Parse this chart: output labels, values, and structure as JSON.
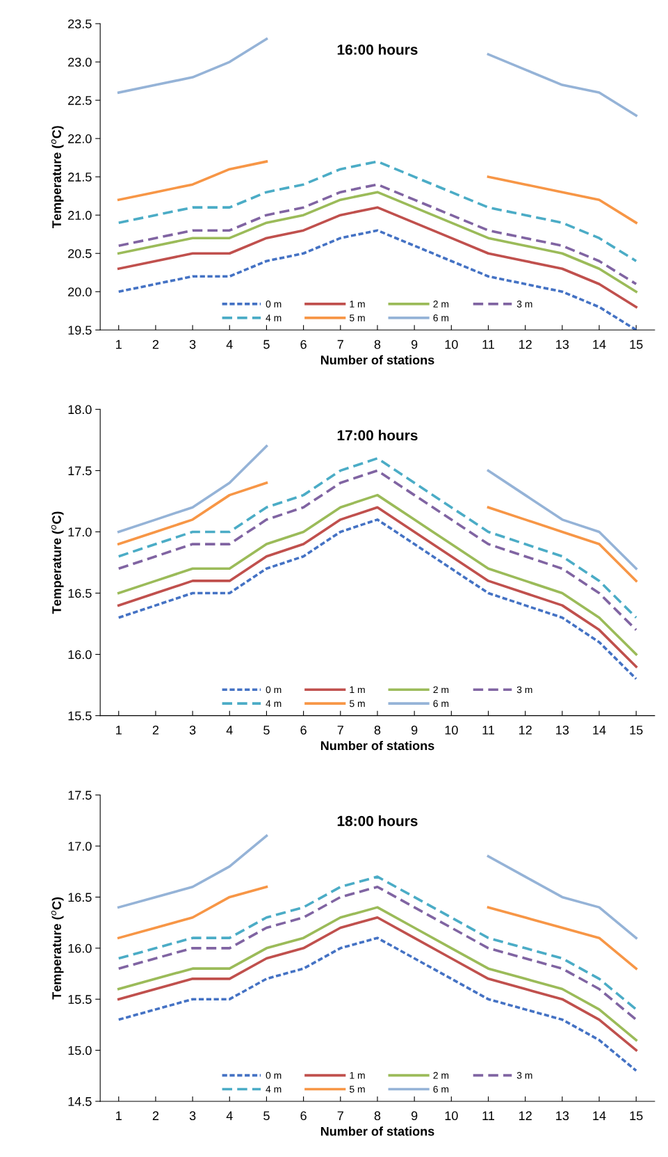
{
  "chart_data": [
    {
      "type": "line",
      "title": "16:00 hours",
      "xlabel": "Number of stations",
      "ylabel": "Temperature ($^{o}$C)",
      "categories": [
        "1",
        "2",
        "3",
        "4",
        "5",
        "6",
        "7",
        "8",
        "9",
        "10",
        "11",
        "12",
        "13",
        "14",
        "15"
      ],
      "ylim": [
        19.5,
        23.5
      ],
      "yticks": [
        {
          "value": 19.5,
          "label": "19.5"
        },
        {
          "value": 20,
          "label": "20.0"
        },
        {
          "value": 20.5,
          "label": "20.5"
        },
        {
          "value": 21,
          "label": "21.0"
        },
        {
          "value": 21.5,
          "label": "21.5"
        },
        {
          "value": 22,
          "label": "22.0"
        },
        {
          "value": 22.5,
          "label": "22.5"
        },
        {
          "value": 23,
          "label": "23.0"
        },
        {
          "value": 23.5,
          "label": "23.5"
        }
      ],
      "grid": false,
      "legend": "bottom",
      "marker": "none",
      "series": [
        {
          "name": "0 m",
          "color": "#4472c4",
          "line_style": "dotted",
          "values": [
            20.0,
            20.1,
            20.2,
            20.2,
            20.4,
            20.5,
            20.7,
            20.8,
            20.6,
            20.4,
            20.2,
            20.1,
            20.0,
            19.8,
            19.5
          ]
        },
        {
          "name": "1 m",
          "color": "#c0504d",
          "line_style": "solid",
          "values": [
            20.3,
            20.4,
            20.5,
            20.5,
            20.7,
            20.8,
            21.0,
            21.1,
            20.9,
            20.7,
            20.5,
            20.4,
            20.3,
            20.1,
            19.8
          ]
        },
        {
          "name": "2 m",
          "color": "#9bbb59",
          "line_style": "solid",
          "values": [
            20.5,
            20.6,
            20.7,
            20.7,
            20.9,
            21.0,
            21.2,
            21.3,
            21.1,
            20.9,
            20.7,
            20.6,
            20.5,
            20.3,
            20.0
          ]
        },
        {
          "name": "3 m",
          "color": "#8064a2",
          "line_style": "dashed",
          "values": [
            20.6,
            20.7,
            20.8,
            20.8,
            21.0,
            21.1,
            21.3,
            21.4,
            21.2,
            21.0,
            20.8,
            20.7,
            20.6,
            20.4,
            20.1
          ]
        },
        {
          "name": "4 m",
          "color": "#4bacc6",
          "line_style": "dashed",
          "values": [
            20.9,
            21.0,
            21.1,
            21.1,
            21.3,
            21.4,
            21.6,
            21.7,
            21.5,
            21.3,
            21.1,
            21.0,
            20.9,
            20.7,
            20.4
          ]
        },
        {
          "name": "5 m",
          "color": "#f79646",
          "line_style": "solid",
          "values": [
            21.2,
            21.3,
            21.4,
            21.6,
            21.7,
            null,
            null,
            null,
            null,
            null,
            21.5,
            21.4,
            21.3,
            21.2,
            20.9
          ]
        },
        {
          "name": "6 m",
          "color": "#95b3d7",
          "line_style": "solid",
          "values": [
            22.6,
            22.7,
            22.8,
            23.0,
            23.3,
            null,
            null,
            null,
            null,
            null,
            23.1,
            22.9,
            22.7,
            22.6,
            22.3
          ]
        }
      ]
    },
    {
      "type": "line",
      "title": "17:00 hours",
      "xlabel": "Number of stations",
      "ylabel": "Temperature ($^{o}$C)",
      "categories": [
        "1",
        "2",
        "3",
        "4",
        "5",
        "6",
        "7",
        "8",
        "9",
        "10",
        "11",
        "12",
        "13",
        "14",
        "15"
      ],
      "ylim": [
        15.5,
        18.0
      ],
      "yticks": [
        {
          "value": 15.5,
          "label": "15.5"
        },
        {
          "value": 16,
          "label": "16.0"
        },
        {
          "value": 16.5,
          "label": "16.5"
        },
        {
          "value": 17,
          "label": "17.0"
        },
        {
          "value": 17.5,
          "label": "17.5"
        },
        {
          "value": 18,
          "label": "18.0"
        }
      ],
      "grid": false,
      "legend": "bottom",
      "marker": "none",
      "series": [
        {
          "name": "0 m",
          "color": "#4472c4",
          "line_style": "dotted",
          "values": [
            16.3,
            16.4,
            16.5,
            16.5,
            16.7,
            16.8,
            17.0,
            17.1,
            16.9,
            16.7,
            16.5,
            16.4,
            16.3,
            16.1,
            15.8
          ]
        },
        {
          "name": "1 m",
          "color": "#c0504d",
          "line_style": "solid",
          "values": [
            16.4,
            16.5,
            16.6,
            16.6,
            16.8,
            16.9,
            17.1,
            17.2,
            17.0,
            16.8,
            16.6,
            16.5,
            16.4,
            16.2,
            15.9
          ]
        },
        {
          "name": "2 m",
          "color": "#9bbb59",
          "line_style": "solid",
          "values": [
            16.5,
            16.6,
            16.7,
            16.7,
            16.9,
            17.0,
            17.2,
            17.3,
            17.1,
            16.9,
            16.7,
            16.6,
            16.5,
            16.3,
            16.0
          ]
        },
        {
          "name": "3 m",
          "color": "#8064a2",
          "line_style": "dashed",
          "values": [
            16.7,
            16.8,
            16.9,
            16.9,
            17.1,
            17.2,
            17.4,
            17.5,
            17.3,
            17.1,
            16.9,
            16.8,
            16.7,
            16.5,
            16.2
          ]
        },
        {
          "name": "4 m",
          "color": "#4bacc6",
          "line_style": "dashed",
          "values": [
            16.8,
            16.9,
            17.0,
            17.0,
            17.2,
            17.3,
            17.5,
            17.6,
            17.4,
            17.2,
            17.0,
            16.9,
            16.8,
            16.6,
            16.3
          ]
        },
        {
          "name": "5 m",
          "color": "#f79646",
          "line_style": "solid",
          "values": [
            16.9,
            17.0,
            17.1,
            17.3,
            17.4,
            null,
            null,
            null,
            null,
            null,
            17.2,
            17.1,
            17.0,
            16.9,
            16.6
          ]
        },
        {
          "name": "6 m",
          "color": "#95b3d7",
          "line_style": "solid",
          "values": [
            17.0,
            17.1,
            17.2,
            17.4,
            17.7,
            null,
            null,
            null,
            null,
            null,
            17.5,
            17.3,
            17.1,
            17.0,
            16.7
          ]
        }
      ]
    },
    {
      "type": "line",
      "title": "18:00 hours",
      "xlabel": "Number of stations",
      "ylabel": "Temperature ($^{o}$C)",
      "categories": [
        "1",
        "2",
        "3",
        "4",
        "5",
        "6",
        "7",
        "8",
        "9",
        "10",
        "11",
        "12",
        "13",
        "14",
        "15"
      ],
      "ylim": [
        14.5,
        17.5
      ],
      "yticks": [
        {
          "value": 14.5,
          "label": "14.5"
        },
        {
          "value": 15,
          "label": "15.0"
        },
        {
          "value": 15.5,
          "label": "15.5"
        },
        {
          "value": 16,
          "label": "16.0"
        },
        {
          "value": 16.5,
          "label": "16.5"
        },
        {
          "value": 17,
          "label": "17.0"
        },
        {
          "value": 17.5,
          "label": "17.5"
        }
      ],
      "grid": false,
      "legend": "bottom",
      "marker": "none",
      "series": [
        {
          "name": "0 m",
          "color": "#4472c4",
          "line_style": "dotted",
          "values": [
            15.3,
            15.4,
            15.5,
            15.5,
            15.7,
            15.8,
            16.0,
            16.1,
            15.9,
            15.7,
            15.5,
            15.4,
            15.3,
            15.1,
            14.8
          ]
        },
        {
          "name": "1 m",
          "color": "#c0504d",
          "line_style": "solid",
          "values": [
            15.5,
            15.6,
            15.7,
            15.7,
            15.9,
            16.0,
            16.2,
            16.3,
            16.1,
            15.9,
            15.7,
            15.6,
            15.5,
            15.3,
            15.0
          ]
        },
        {
          "name": "2 m",
          "color": "#9bbb59",
          "line_style": "solid",
          "values": [
            15.6,
            15.7,
            15.8,
            15.8,
            16.0,
            16.1,
            16.3,
            16.4,
            16.2,
            16.0,
            15.8,
            15.7,
            15.6,
            15.4,
            15.1
          ]
        },
        {
          "name": "3 m",
          "color": "#8064a2",
          "line_style": "dashed",
          "values": [
            15.8,
            15.9,
            16.0,
            16.0,
            16.2,
            16.3,
            16.5,
            16.6,
            16.4,
            16.2,
            16.0,
            15.9,
            15.8,
            15.6,
            15.3
          ]
        },
        {
          "name": "4 m",
          "color": "#4bacc6",
          "line_style": "dashed",
          "values": [
            15.9,
            16.0,
            16.1,
            16.1,
            16.3,
            16.4,
            16.6,
            16.7,
            16.5,
            16.3,
            16.1,
            16.0,
            15.9,
            15.7,
            15.4
          ]
        },
        {
          "name": "5 m",
          "color": "#f79646",
          "line_style": "solid",
          "values": [
            16.1,
            16.2,
            16.3,
            16.5,
            16.6,
            null,
            null,
            null,
            null,
            null,
            16.4,
            16.3,
            16.2,
            16.1,
            15.8
          ]
        },
        {
          "name": "6 m",
          "color": "#95b3d7",
          "line_style": "solid",
          "values": [
            16.4,
            16.5,
            16.6,
            16.8,
            17.1,
            null,
            null,
            null,
            null,
            null,
            16.9,
            16.7,
            16.5,
            16.4,
            16.1
          ]
        }
      ]
    }
  ]
}
